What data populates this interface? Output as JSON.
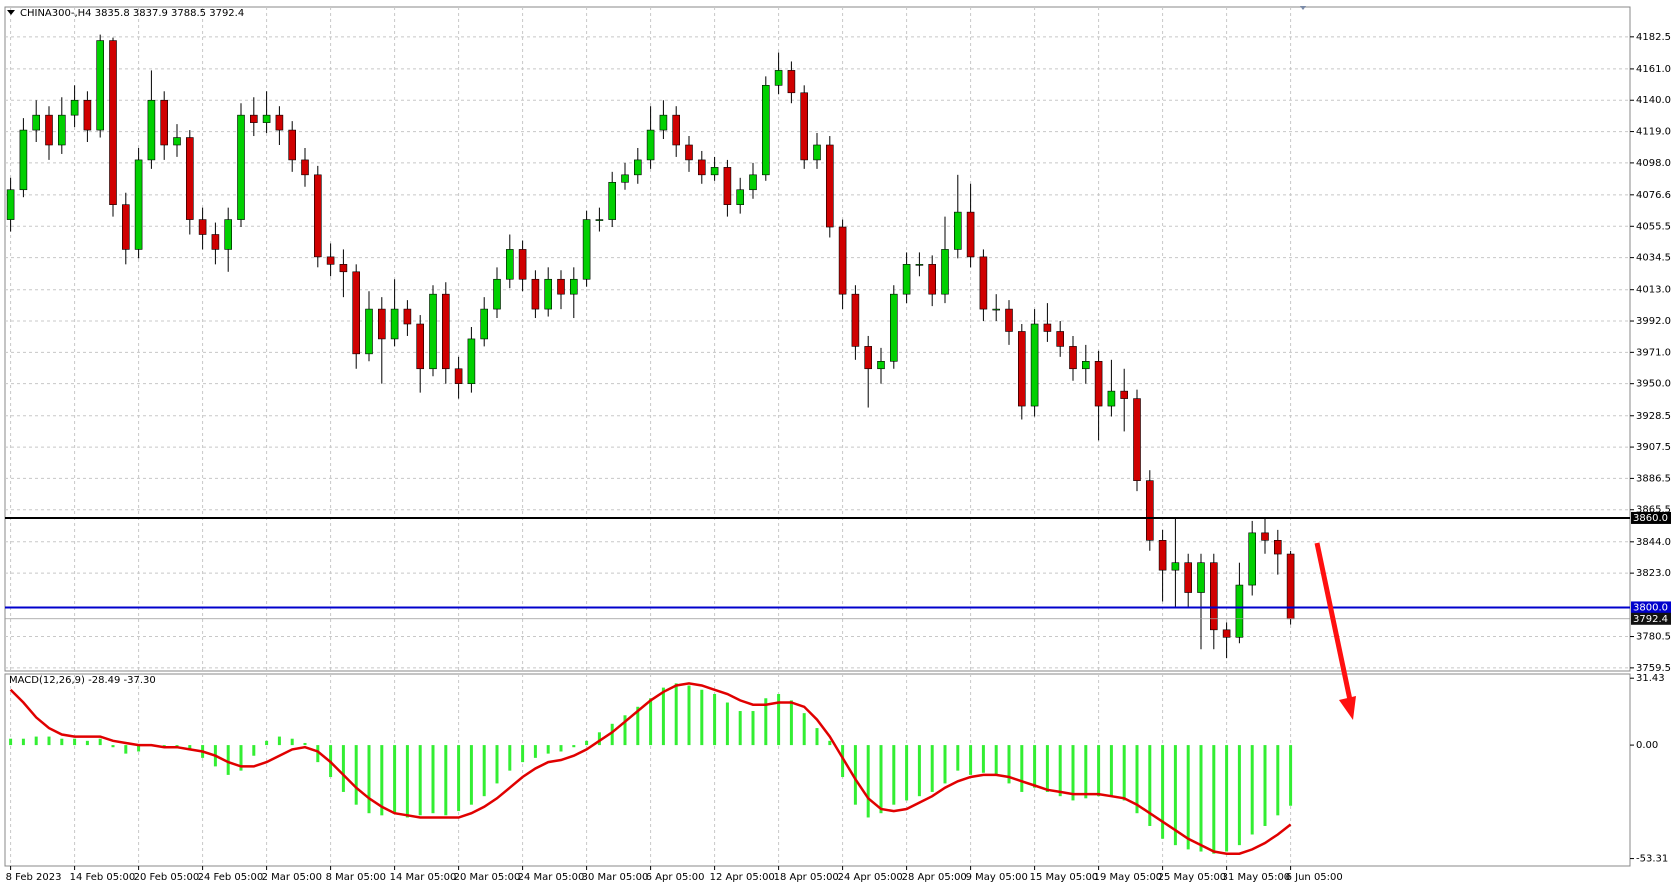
{
  "chart_data": {
    "type": "candlestick",
    "title": "CHINA300-,H4  3835.8 3837.9 3788.5 3792.4",
    "categories": [
      "8 Feb 2023",
      null,
      null,
      null,
      null,
      "14 Feb 05:00",
      null,
      null,
      null,
      null,
      "20 Feb 05:00",
      null,
      null,
      null,
      null,
      "24 Feb 05:00",
      null,
      null,
      null,
      null,
      "2 Mar 05:00",
      null,
      null,
      null,
      null,
      "8 Mar 05:00",
      null,
      null,
      null,
      null,
      "14 Mar 05:00",
      null,
      null,
      null,
      null,
      "20 Mar 05:00",
      null,
      null,
      null,
      null,
      "24 Mar 05:00",
      null,
      null,
      null,
      null,
      "30 Mar 05:00",
      null,
      null,
      null,
      null,
      "6 Apr 05:00",
      null,
      null,
      null,
      null,
      "12 Apr 05:00",
      null,
      null,
      null,
      null,
      "18 Apr 05:00",
      null,
      null,
      null,
      null,
      "24 Apr 05:00",
      null,
      null,
      null,
      null,
      "28 Apr 05:00",
      null,
      null,
      null,
      null,
      "9 May 05:00",
      null,
      null,
      null,
      null,
      "15 May 05:00",
      null,
      null,
      null,
      null,
      "19 May 05:00",
      null,
      null,
      null,
      null,
      "25 May 05:00",
      null,
      null,
      null,
      null,
      "31 May 05:00",
      null,
      null,
      null,
      null,
      "6 Jun 05:00"
    ],
    "open": [
      4060,
      4080,
      4120,
      4130,
      4110,
      4130,
      4140,
      4120,
      4180,
      4070,
      4040,
      4100,
      4140,
      4110,
      4115,
      4060,
      4050,
      4040,
      4060,
      4130,
      4125,
      4130,
      4120,
      4100,
      4090,
      4035,
      4030,
      4025,
      3970,
      4000,
      3980,
      4000,
      3990,
      3960,
      4010,
      3960,
      3950,
      3980,
      4000,
      4020,
      4040,
      4020,
      4000,
      4020,
      4010,
      4020,
      4060,
      4060,
      4085,
      4090,
      4100,
      4120,
      4130,
      4110,
      4100,
      4090,
      4095,
      4070,
      4080,
      4090,
      4150,
      4160,
      4145,
      4100,
      4110,
      4055,
      4010,
      3975,
      3960,
      3965,
      4010,
      4030,
      4030,
      4010,
      4040,
      4065,
      4035,
      4000,
      4000,
      3985,
      3935,
      3990,
      3985,
      3975,
      3960,
      3965,
      3935,
      3945,
      3940,
      3885,
      3845,
      3825,
      3830,
      3810,
      3830,
      3785,
      3780,
      3815,
      3850,
      3845,
      3835.8
    ],
    "high": [
      4088,
      4128,
      4140,
      4136,
      4142,
      4150,
      4146,
      4184,
      4182,
      4078,
      4108,
      4160,
      4146,
      4124,
      4120,
      4068,
      4058,
      4068,
      4138,
      4142,
      4146,
      4136,
      4126,
      4108,
      4096,
      4044,
      4040,
      4030,
      4012,
      4008,
      4020,
      4006,
      3996,
      4016,
      4018,
      3968,
      3988,
      4008,
      4028,
      4050,
      4046,
      4026,
      4028,
      4026,
      4028,
      4066,
      4068,
      4092,
      4098,
      4108,
      4136,
      4140,
      4136,
      4116,
      4106,
      4102,
      4100,
      4088,
      4098,
      4156,
      4172,
      4166,
      4150,
      4118,
      4116,
      4060,
      4016,
      3982,
      3974,
      4016,
      4038,
      4038,
      4036,
      4062,
      4090,
      4084,
      4040,
      4010,
      4006,
      3990,
      4000,
      4004,
      3992,
      3982,
      3976,
      3972,
      3966,
      3960,
      3946,
      3892,
      3852,
      3860,
      3836,
      3836,
      3836,
      3790,
      3830,
      3858,
      3860,
      3852,
      3837.9
    ],
    "low": [
      4052,
      4075,
      4112,
      4100,
      4104,
      4122,
      4112,
      4115,
      4062,
      4030,
      4034,
      4094,
      4100,
      4102,
      4050,
      4040,
      4030,
      4025,
      4055,
      4116,
      4118,
      4110,
      4092,
      4082,
      4028,
      4022,
      4008,
      3960,
      3965,
      3950,
      3975,
      3982,
      3944,
      3955,
      3950,
      3940,
      3944,
      3975,
      3994,
      4014,
      4012,
      3994,
      3995,
      4000,
      3994,
      4015,
      4052,
      4055,
      4080,
      4084,
      4094,
      4114,
      4102,
      4092,
      4084,
      4086,
      4062,
      4064,
      4074,
      4086,
      4144,
      4138,
      4094,
      4094,
      4048,
      4000,
      3966,
      3934,
      3950,
      3960,
      4004,
      4022,
      4002,
      4004,
      4034,
      4028,
      3992,
      3992,
      3976,
      3926,
      3928,
      3978,
      3968,
      3952,
      3950,
      3912,
      3928,
      3918,
      3878,
      3838,
      3804,
      3800,
      3800,
      3772,
      3772,
      3766,
      3776,
      3808,
      3836,
      3822,
      3788.5
    ],
    "close": [
      4080,
      4120,
      4130,
      4110,
      4130,
      4140,
      4120,
      4180,
      4070,
      4040,
      4100,
      4140,
      4110,
      4115,
      4060,
      4050,
      4040,
      4060,
      4130,
      4125,
      4130,
      4120,
      4100,
      4090,
      4035,
      4030,
      4025,
      3970,
      4000,
      3980,
      4000,
      3990,
      3960,
      4010,
      3960,
      3950,
      3980,
      4000,
      4020,
      4040,
      4020,
      4000,
      4020,
      4010,
      4020,
      4060,
      4060,
      4085,
      4090,
      4100,
      4120,
      4130,
      4110,
      4100,
      4090,
      4095,
      4070,
      4080,
      4090,
      4150,
      4160,
      4145,
      4100,
      4110,
      4055,
      4010,
      3975,
      3960,
      3965,
      4010,
      4030,
      4030,
      4010,
      4040,
      4065,
      4035,
      4000,
      4000,
      3985,
      3935,
      3990,
      3985,
      3975,
      3960,
      3965,
      3935,
      3945,
      3940,
      3885,
      3845,
      3825,
      3830,
      3810,
      3830,
      3785,
      3780,
      3815,
      3850,
      3845,
      3835.8,
      3792.4
    ],
    "colors": {
      "up": "#00d000",
      "down": "#d00000"
    },
    "ylim": [
      3757.4,
      4202.5
    ],
    "yticks": [
      {
        "value": 4182.5,
        "label": "4182.5"
      },
      {
        "value": 4161,
        "label": "4161.0"
      },
      {
        "value": 4140,
        "label": "4140.0"
      },
      {
        "value": 4119,
        "label": "4119.0"
      },
      {
        "value": 4098,
        "label": "4098.0"
      },
      4076.6,
      4055.5,
      4034.5,
      {
        "value": 4013,
        "label": "4013.0"
      },
      {
        "value": 3992,
        "label": "3992.0"
      },
      {
        "value": 3971,
        "label": "3971.0"
      },
      {
        "value": 3950,
        "label": "3950.0"
      },
      3928.5,
      3907.5,
      3886.5,
      3865.5,
      {
        "value": 3844,
        "label": "3844.0"
      },
      {
        "value": 3823,
        "label": "3823.0"
      },
      3780.5,
      3759.5
    ],
    "grid": true,
    "levels": [
      {
        "value": 3860,
        "label": "3860.0",
        "color": "#000000"
      },
      {
        "value": 3800,
        "label": "3800.0",
        "color": "#0000cc"
      }
    ],
    "last_price": 3792.4,
    "macd": {
      "title": "MACD(12,26,9) -28.49 -37.30",
      "ylim": [
        -56.8,
        33.4
      ],
      "yticks": [
        31.43,
        {
          "value": 0,
          "label": "0.00"
        },
        -53.31
      ],
      "histogram": {
        "color": "#33ee33",
        "values": [
          3,
          3,
          4,
          4,
          3,
          3,
          2,
          3,
          -1,
          -4,
          -3,
          0,
          -1,
          -1,
          -2,
          -6,
          -10,
          -14,
          -12,
          -5,
          2,
          4,
          3,
          1,
          -8,
          -15,
          -22,
          -28,
          -32,
          -33,
          -32,
          -34,
          -33,
          -32,
          -33,
          -31,
          -28,
          -24,
          -18,
          -12,
          -8,
          -6,
          -4,
          -3,
          -1,
          2,
          6,
          10,
          14,
          18,
          22,
          27,
          29,
          28,
          26,
          24,
          20,
          16,
          16,
          22,
          24,
          21,
          15,
          8,
          2,
          -15,
          -28,
          -34,
          -32,
          -28,
          -26,
          -24,
          -22,
          -18,
          -12,
          -14,
          -13,
          -14,
          -18,
          -22,
          -20,
          -22,
          -24,
          -26,
          -25,
          -24,
          -24,
          -26,
          -32,
          -38,
          -44,
          -47,
          -49,
          -50,
          -51,
          -50,
          -47,
          -42,
          -38,
          -33,
          -28.49
        ]
      },
      "signal": {
        "color": "#e00000",
        "values": [
          26,
          20,
          13,
          8,
          5,
          4,
          4,
          4,
          2,
          1,
          0,
          0,
          -1,
          -1,
          -2,
          -3,
          -5,
          -8,
          -10,
          -10,
          -8,
          -5,
          -2,
          -1,
          -3,
          -8,
          -14,
          -20,
          -25,
          -29,
          -32,
          -33,
          -34,
          -34,
          -34,
          -34,
          -32,
          -29,
          -25,
          -20,
          -15,
          -11,
          -8,
          -7,
          -5,
          -2,
          2,
          6,
          11,
          16,
          21,
          25,
          28,
          29,
          28,
          26,
          24,
          21,
          19,
          19,
          20,
          20,
          18,
          12,
          4,
          -6,
          -16,
          -25,
          -30,
          -31,
          -30,
          -27,
          -24,
          -20,
          -17,
          -15,
          -14,
          -14,
          -15,
          -17,
          -19,
          -21,
          -22,
          -23,
          -23,
          -23,
          -24,
          -25,
          -28,
          -32,
          -36,
          -40,
          -44,
          -47,
          -50,
          -51,
          -51,
          -49,
          -46,
          -42,
          -37.3
        ]
      }
    }
  }
}
